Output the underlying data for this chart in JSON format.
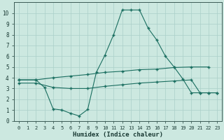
{
  "xlabel": "Humidex (Indice chaleur)",
  "background_color": "#cce8e0",
  "grid_color": "#aacfc8",
  "line_color": "#1a6e60",
  "xlim": [
    -0.5,
    23.5
  ],
  "ylim": [
    0,
    11
  ],
  "xticks": [
    0,
    1,
    2,
    3,
    4,
    5,
    6,
    7,
    8,
    9,
    10,
    11,
    12,
    13,
    14,
    15,
    16,
    17,
    18,
    19,
    20,
    21,
    22,
    23
  ],
  "yticks": [
    0,
    1,
    2,
    3,
    4,
    5,
    6,
    7,
    8,
    9,
    10
  ],
  "series_peak": {
    "x": [
      0,
      2,
      3,
      4,
      5,
      6,
      7,
      8,
      9,
      10,
      11,
      12,
      13,
      14,
      15,
      16,
      17,
      18,
      19,
      20,
      21,
      22,
      23
    ],
    "y": [
      3.8,
      3.8,
      3.1,
      1.1,
      1.0,
      0.7,
      0.45,
      1.05,
      4.5,
      6.1,
      8.0,
      10.3,
      10.3,
      10.3,
      8.6,
      7.5,
      6.0,
      5.0,
      3.9,
      2.6,
      2.6,
      2.6,
      2.6
    ]
  },
  "series_upper": {
    "x": [
      0,
      2,
      4,
      6,
      8,
      10,
      12,
      14,
      16,
      18,
      20,
      22
    ],
    "y": [
      3.8,
      3.8,
      4.0,
      4.15,
      4.3,
      4.5,
      4.6,
      4.75,
      4.8,
      4.95,
      5.0,
      5.0
    ]
  },
  "series_lower": {
    "x": [
      0,
      2,
      4,
      6,
      8,
      10,
      12,
      14,
      16,
      18,
      20,
      21,
      22,
      23
    ],
    "y": [
      3.5,
      3.5,
      3.1,
      3.0,
      3.0,
      3.2,
      3.35,
      3.5,
      3.6,
      3.7,
      3.8,
      2.6,
      2.6,
      2.6
    ]
  }
}
